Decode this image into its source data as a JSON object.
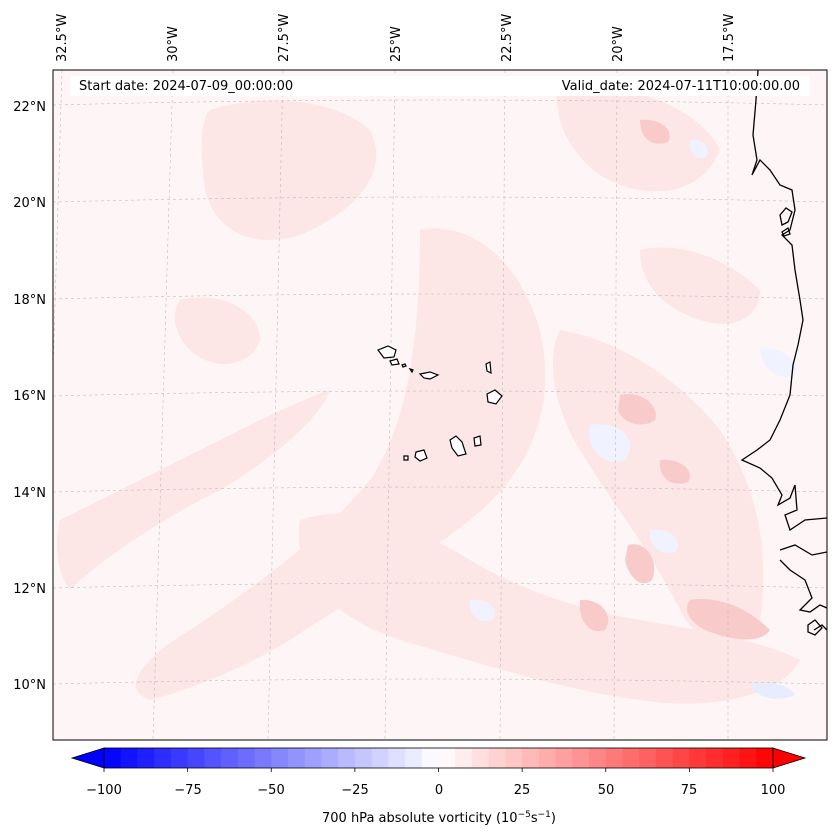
{
  "map": {
    "start_date_label": "Start date: 2024-07-09_00:00:00",
    "valid_date_label": "Valid_date: 2024-07-11T10:00:00.00",
    "lon_labels": [
      "32.5°W",
      "30°W",
      "27.5°W",
      "25°W",
      "22.5°W",
      "20°W",
      "17.5°W"
    ],
    "lat_labels": [
      "22°N",
      "20°N",
      "18°N",
      "16°N",
      "14°N",
      "12°N",
      "10°N"
    ]
  },
  "colorbar": {
    "label_prefix": "700 hPa absolute vorticity (10",
    "label_exp1": "−5",
    "label_mid": "s",
    "label_exp2": "−1",
    "label_suffix": ")",
    "tick_labels": [
      "−100",
      "−75",
      "−50",
      "−25",
      "0",
      "25",
      "50",
      "75",
      "100"
    ],
    "min": -100,
    "max": 100,
    "step": 5,
    "neg_color": "#0000ff",
    "pos_color": "#ff0000"
  },
  "colors": {
    "background_field": "#fef6f6",
    "light_positive": "#fde6e6",
    "moderate_positive": "#f9caca",
    "light_negative": "#f0f3ff",
    "coastline": "#000000"
  }
}
